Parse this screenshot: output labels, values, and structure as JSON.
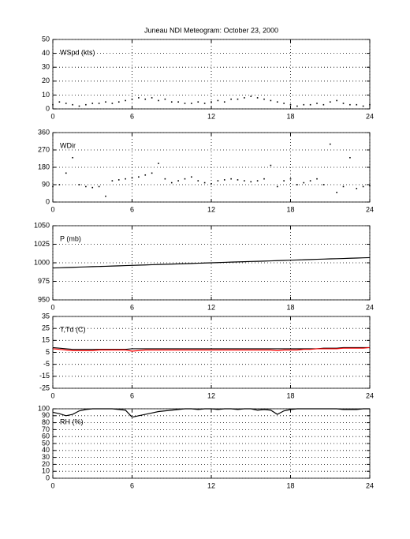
{
  "title": "Juneau NDI Meteogram:    October 23, 2000",
  "chart_data": [
    {
      "type": "scatter",
      "label": "WSpd (kts)",
      "color": "#000000",
      "grid": true,
      "xlim": [
        0,
        24
      ],
      "xticks": [
        0,
        6,
        12,
        18,
        24
      ],
      "ylim": [
        0,
        50
      ],
      "yticks": [
        0,
        10,
        20,
        30,
        40,
        50
      ],
      "x": [
        0,
        0.5,
        1,
        1.5,
        2,
        2.5,
        3,
        3.5,
        4,
        4.5,
        5,
        5.5,
        6,
        6.5,
        7,
        7.5,
        8,
        8.5,
        9,
        9.5,
        10,
        10.5,
        11,
        11.5,
        12,
        12.5,
        13,
        13.5,
        14,
        14.5,
        15,
        15.5,
        16,
        16.5,
        17,
        17.5,
        18,
        18.5,
        19,
        19.5,
        20,
        20.5,
        21,
        21.5,
        22,
        22.5,
        23,
        23.5,
        24
      ],
      "values": [
        3,
        5,
        4,
        3,
        2,
        3,
        4,
        4,
        5,
        4,
        5,
        6,
        7,
        8,
        7,
        8,
        6,
        7,
        5,
        5,
        4,
        4,
        5,
        4,
        5,
        6,
        5,
        7,
        7,
        8,
        9,
        8,
        7,
        6,
        5,
        4,
        3,
        2,
        3,
        3,
        4,
        3,
        5,
        6,
        4,
        3,
        3,
        2,
        3
      ]
    },
    {
      "type": "scatter",
      "label": "WDir",
      "color": "#000000",
      "grid": true,
      "xlim": [
        0,
        24
      ],
      "xticks": [
        0,
        6,
        12,
        18,
        24
      ],
      "ylim": [
        0,
        360
      ],
      "yticks": [
        0,
        90,
        180,
        270,
        360
      ],
      "x": [
        0,
        0.5,
        1,
        1.5,
        2,
        2.5,
        3,
        3.5,
        4,
        4.5,
        5,
        5.5,
        6,
        6.5,
        7,
        7.5,
        8,
        8.5,
        9,
        9.5,
        10,
        10.5,
        11,
        11.5,
        12,
        12.5,
        13,
        13.5,
        14,
        14.5,
        15,
        15.5,
        16,
        16.5,
        17,
        17.5,
        18,
        18.5,
        19,
        19.5,
        20,
        20.5,
        21,
        21.5,
        22,
        22.5,
        23,
        23.5,
        24
      ],
      "values": [
        80,
        90,
        150,
        230,
        90,
        80,
        75,
        80,
        30,
        110,
        115,
        120,
        125,
        130,
        140,
        150,
        200,
        120,
        100,
        110,
        120,
        130,
        110,
        100,
        95,
        110,
        115,
        120,
        115,
        110,
        105,
        110,
        120,
        190,
        80,
        110,
        120,
        90,
        100,
        110,
        120,
        90,
        300,
        50,
        80,
        230,
        70,
        80,
        85
      ]
    },
    {
      "type": "line",
      "label": "P (mb)",
      "color": "#000000",
      "grid": true,
      "xlim": [
        0,
        24
      ],
      "xticks": [
        0,
        6,
        12,
        18,
        24
      ],
      "ylim": [
        950,
        1050
      ],
      "yticks": [
        950,
        975,
        1000,
        1025,
        1050
      ],
      "x": [
        0,
        0.5,
        1,
        1.5,
        2,
        2.5,
        3,
        3.5,
        4,
        4.5,
        5,
        5.5,
        6,
        6.5,
        7,
        7.5,
        8,
        8.5,
        9,
        9.5,
        10,
        10.5,
        11,
        11.5,
        12,
        12.5,
        13,
        13.5,
        14,
        14.5,
        15,
        15.5,
        16,
        16.5,
        17,
        17.5,
        18,
        18.5,
        19,
        19.5,
        20,
        20.5,
        21,
        21.5,
        22,
        22.5,
        23,
        23.5,
        24
      ],
      "values": [
        993.0,
        993.3,
        993.6,
        993.9,
        994.2,
        994.5,
        994.8,
        995.0,
        995.3,
        995.6,
        995.9,
        996.2,
        996.5,
        996.8,
        997.1,
        997.4,
        997.7,
        998.0,
        998.3,
        998.5,
        998.8,
        999.1,
        999.4,
        999.7,
        1000.0,
        1000.3,
        1000.6,
        1000.9,
        1001.2,
        1001.5,
        1001.8,
        1002.0,
        1002.3,
        1002.6,
        1002.9,
        1003.2,
        1003.5,
        1003.8,
        1004.1,
        1004.4,
        1004.7,
        1005.0,
        1005.3,
        1005.5,
        1005.8,
        1006.1,
        1006.4,
        1006.7,
        1007.0
      ]
    },
    {
      "type": "line",
      "label": "T,Td (C)",
      "grid": true,
      "xlim": [
        0,
        24
      ],
      "xticks": [
        0,
        6,
        12,
        18,
        24
      ],
      "ylim": [
        -25,
        35
      ],
      "yticks": [
        -25,
        -15,
        -5,
        5,
        15,
        25,
        35
      ],
      "x": [
        0,
        0.5,
        1,
        1.5,
        2,
        2.5,
        3,
        3.5,
        4,
        4.5,
        5,
        5.5,
        6,
        6.5,
        7,
        7.5,
        8,
        8.5,
        9,
        9.5,
        10,
        10.5,
        11,
        11.5,
        12,
        12.5,
        13,
        13.5,
        14,
        14.5,
        15,
        15.5,
        16,
        16.5,
        17,
        17.5,
        18,
        18.5,
        19,
        19.5,
        20,
        20.5,
        21,
        21.5,
        22,
        22.5,
        23,
        23.5,
        24
      ],
      "series": [
        {
          "color": "#000000",
          "values": [
            9,
            8.5,
            8,
            7.5,
            7.5,
            7.5,
            7.5,
            7.5,
            7.5,
            7.5,
            7.5,
            7.5,
            8,
            8,
            8,
            8,
            8,
            8,
            8,
            8,
            8,
            8,
            8,
            8,
            8,
            8,
            8,
            8,
            8,
            8,
            8,
            8,
            8,
            8,
            8,
            8,
            8,
            8,
            8,
            8,
            8,
            8.5,
            8.5,
            8.5,
            9,
            9,
            9,
            9,
            9
          ]
        },
        {
          "color": "#ff0000",
          "values": [
            8,
            7.5,
            7,
            6.5,
            6.5,
            6.5,
            6.5,
            7,
            7,
            7,
            7,
            7,
            6,
            6.5,
            7,
            7,
            7,
            7,
            7,
            7,
            7,
            7,
            7,
            7,
            7,
            7,
            7,
            7,
            7,
            7,
            7,
            7,
            7,
            7,
            6.5,
            7,
            7,
            7,
            7.5,
            7.5,
            8,
            8,
            8,
            8,
            8.5,
            8.5,
            8.5,
            8.5,
            9
          ]
        }
      ]
    },
    {
      "type": "line",
      "label": "RH (%)",
      "color": "#000000",
      "grid": true,
      "xlim": [
        0,
        24
      ],
      "xticks": [
        0,
        6,
        12,
        18,
        24
      ],
      "ylim": [
        0,
        100
      ],
      "yticks": [
        0,
        10,
        20,
        30,
        40,
        50,
        60,
        70,
        80,
        90,
        100
      ],
      "x": [
        0,
        0.5,
        1,
        1.5,
        2,
        2.5,
        3,
        3.5,
        4,
        4.5,
        5,
        5.5,
        6,
        6.5,
        7,
        7.5,
        8,
        8.5,
        9,
        9.5,
        10,
        10.5,
        11,
        11.5,
        12,
        12.5,
        13,
        13.5,
        14,
        14.5,
        15,
        15.5,
        16,
        16.5,
        17,
        17.5,
        18,
        18.5,
        19,
        19.5,
        20,
        20.5,
        21,
        21.5,
        22,
        22.5,
        23,
        23.5,
        24
      ],
      "values": [
        95,
        93,
        90,
        92,
        97,
        99,
        100,
        100,
        100,
        100,
        99,
        98,
        88,
        90,
        92,
        94,
        96,
        97,
        98,
        99,
        100,
        100,
        99,
        100,
        100,
        99,
        100,
        100,
        99,
        100,
        100,
        98,
        99,
        98,
        92,
        97,
        99,
        100,
        100,
        100,
        100,
        100,
        100,
        100,
        99,
        99,
        99,
        100,
        100
      ]
    }
  ]
}
